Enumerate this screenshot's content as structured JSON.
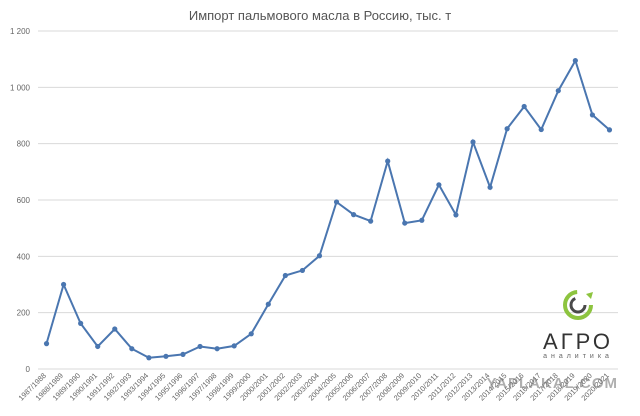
{
  "title": "Импорт пальмового масла в Россию, тыс. т",
  "logo": {
    "main": "АГРО",
    "sub": "аналитика"
  },
  "watermark": "YAPLAKAL.COM",
  "colors": {
    "line": "#4a76b0",
    "grid": "#d9d9d9",
    "logo_green": "#8dc43f"
  },
  "chart_data": {
    "type": "line",
    "title": "Импорт пальмового масла в Россию, тыс. т",
    "xlabel": "",
    "ylabel": "",
    "ylim": [
      0,
      1200
    ],
    "yticks": [
      "0",
      "200",
      "400",
      "600",
      "800",
      "1 000",
      "1 200"
    ],
    "grid": true,
    "categories": [
      "1987/1988",
      "1988/1989",
      "1989/1990",
      "1990/1991",
      "1991/1992",
      "1992/1993",
      "1993/1994",
      "1994/1995",
      "1995/1996",
      "1996/1997",
      "1997/1998",
      "1998/1999",
      "1999/2000",
      "2000/2001",
      "2001/2002",
      "2002/2003",
      "2003/2004",
      "2004/2005",
      "2005/2006",
      "2006/2007",
      "2007/2008",
      "2008/2009",
      "2009/2010",
      "2010/2011",
      "2011/2012",
      "2012/2013",
      "2013/2014",
      "2014/2015",
      "2015/2016",
      "2016/2017",
      "2017/2018",
      "2018/2019",
      "2019/2020",
      "2020/2021"
    ],
    "series": [
      {
        "values": [
          90,
          300,
          162,
          80,
          142,
          72,
          40,
          45,
          52,
          80,
          72,
          82,
          125,
          230,
          332,
          350,
          402,
          593,
          548,
          525,
          738,
          518,
          528,
          654,
          547,
          806,
          645,
          853,
          932,
          850,
          988,
          1095,
          902,
          849
        ]
      }
    ]
  }
}
